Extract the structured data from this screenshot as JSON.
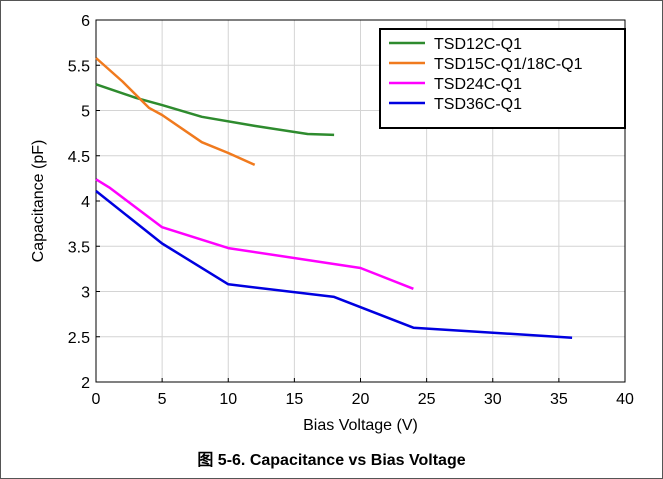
{
  "caption": "图 5-6. Capacitance vs Bias Voltage",
  "colors": {
    "axis": "#000000",
    "grid": "#d4d4d4"
  },
  "chart_data": {
    "type": "line",
    "title": "",
    "xlabel": "Bias Voltage (V)",
    "ylabel": "Capacitance (pF)",
    "xlim": [
      0,
      40
    ],
    "ylim": [
      2,
      6
    ],
    "xticks": [
      0,
      5,
      10,
      15,
      20,
      25,
      30,
      35,
      40
    ],
    "yticks": [
      2,
      2.5,
      3,
      3.5,
      4,
      4.5,
      5,
      5.5,
      6
    ],
    "grid": true,
    "legend_position": "top-right",
    "series": [
      {
        "name": "TSD12C-Q1",
        "color": "#2e8b2e",
        "x": [
          0,
          3,
          5,
          8,
          12,
          16,
          18
        ],
        "y": [
          5.29,
          5.14,
          5.06,
          4.93,
          4.83,
          4.74,
          4.73
        ]
      },
      {
        "name": "TSD15C-Q1/18C-Q1",
        "color": "#f07a1e",
        "x": [
          0,
          2,
          4,
          5,
          8,
          10,
          12
        ],
        "y": [
          5.58,
          5.32,
          5.03,
          4.95,
          4.65,
          4.53,
          4.4
        ]
      },
      {
        "name": "TSD24C-Q1",
        "color": "#ff00ff",
        "x": [
          0,
          1,
          5,
          10,
          20,
          24
        ],
        "y": [
          4.24,
          4.15,
          3.71,
          3.48,
          3.26,
          3.03
        ]
      },
      {
        "name": "TSD36C-Q1",
        "color": "#0000e0",
        "x": [
          0,
          5,
          10,
          18,
          24,
          36
        ],
        "y": [
          4.11,
          3.53,
          3.08,
          2.94,
          2.6,
          2.49
        ]
      }
    ]
  }
}
